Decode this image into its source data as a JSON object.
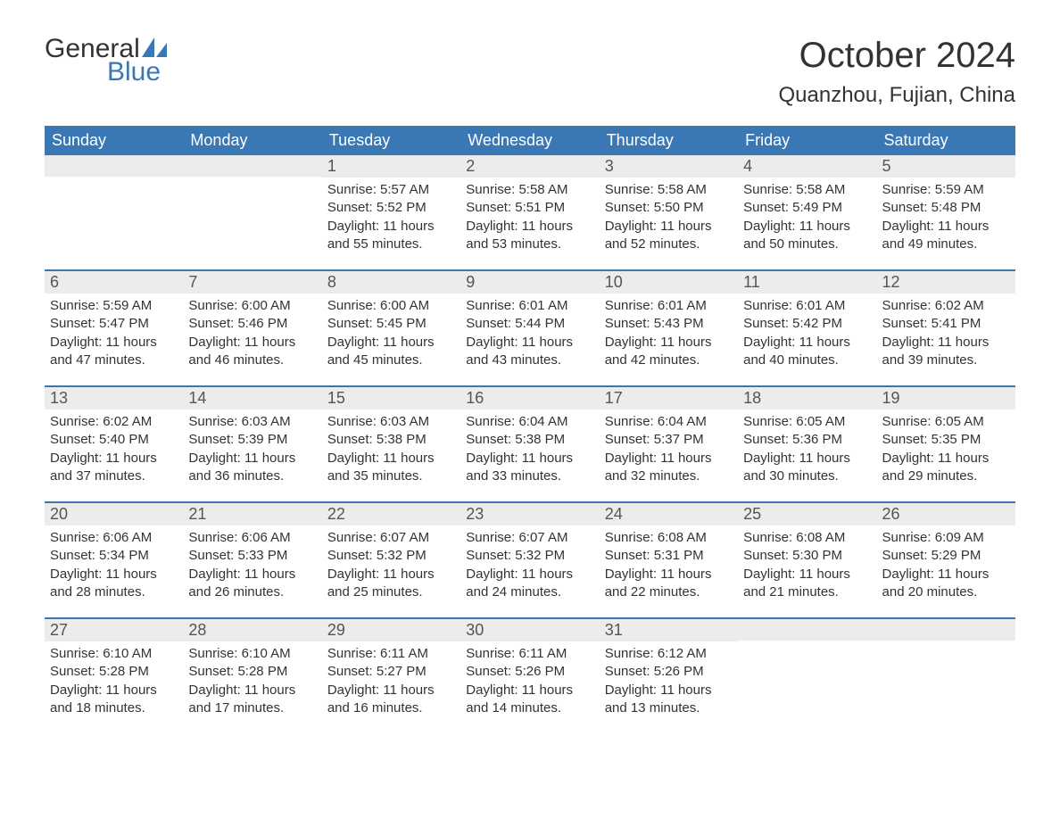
{
  "brand": {
    "general": "General",
    "blue": "Blue",
    "icon_color": "#3a78b5",
    "text_color": "#333333"
  },
  "header": {
    "month_title": "October 2024",
    "location": "Quanzhou, Fujian, China",
    "title_fontsize": 40,
    "location_fontsize": 24
  },
  "style": {
    "header_bg": "#3a78b5",
    "header_text": "#ffffff",
    "daynum_bg": "#ececec",
    "body_text_color": "#333333",
    "border_color": "#3a78b5",
    "page_bg": "#ffffff",
    "weekday_fontsize": 18,
    "daynum_fontsize": 18,
    "body_fontsize": 15
  },
  "weekdays": [
    "Sunday",
    "Monday",
    "Tuesday",
    "Wednesday",
    "Thursday",
    "Friday",
    "Saturday"
  ],
  "weeks": [
    [
      {
        "day": "",
        "sunrise": "",
        "sunset": "",
        "daylight": ""
      },
      {
        "day": "",
        "sunrise": "",
        "sunset": "",
        "daylight": ""
      },
      {
        "day": "1",
        "sunrise": "Sunrise: 5:57 AM",
        "sunset": "Sunset: 5:52 PM",
        "daylight": "Daylight: 11 hours and 55 minutes."
      },
      {
        "day": "2",
        "sunrise": "Sunrise: 5:58 AM",
        "sunset": "Sunset: 5:51 PM",
        "daylight": "Daylight: 11 hours and 53 minutes."
      },
      {
        "day": "3",
        "sunrise": "Sunrise: 5:58 AM",
        "sunset": "Sunset: 5:50 PM",
        "daylight": "Daylight: 11 hours and 52 minutes."
      },
      {
        "day": "4",
        "sunrise": "Sunrise: 5:58 AM",
        "sunset": "Sunset: 5:49 PM",
        "daylight": "Daylight: 11 hours and 50 minutes."
      },
      {
        "day": "5",
        "sunrise": "Sunrise: 5:59 AM",
        "sunset": "Sunset: 5:48 PM",
        "daylight": "Daylight: 11 hours and 49 minutes."
      }
    ],
    [
      {
        "day": "6",
        "sunrise": "Sunrise: 5:59 AM",
        "sunset": "Sunset: 5:47 PM",
        "daylight": "Daylight: 11 hours and 47 minutes."
      },
      {
        "day": "7",
        "sunrise": "Sunrise: 6:00 AM",
        "sunset": "Sunset: 5:46 PM",
        "daylight": "Daylight: 11 hours and 46 minutes."
      },
      {
        "day": "8",
        "sunrise": "Sunrise: 6:00 AM",
        "sunset": "Sunset: 5:45 PM",
        "daylight": "Daylight: 11 hours and 45 minutes."
      },
      {
        "day": "9",
        "sunrise": "Sunrise: 6:01 AM",
        "sunset": "Sunset: 5:44 PM",
        "daylight": "Daylight: 11 hours and 43 minutes."
      },
      {
        "day": "10",
        "sunrise": "Sunrise: 6:01 AM",
        "sunset": "Sunset: 5:43 PM",
        "daylight": "Daylight: 11 hours and 42 minutes."
      },
      {
        "day": "11",
        "sunrise": "Sunrise: 6:01 AM",
        "sunset": "Sunset: 5:42 PM",
        "daylight": "Daylight: 11 hours and 40 minutes."
      },
      {
        "day": "12",
        "sunrise": "Sunrise: 6:02 AM",
        "sunset": "Sunset: 5:41 PM",
        "daylight": "Daylight: 11 hours and 39 minutes."
      }
    ],
    [
      {
        "day": "13",
        "sunrise": "Sunrise: 6:02 AM",
        "sunset": "Sunset: 5:40 PM",
        "daylight": "Daylight: 11 hours and 37 minutes."
      },
      {
        "day": "14",
        "sunrise": "Sunrise: 6:03 AM",
        "sunset": "Sunset: 5:39 PM",
        "daylight": "Daylight: 11 hours and 36 minutes."
      },
      {
        "day": "15",
        "sunrise": "Sunrise: 6:03 AM",
        "sunset": "Sunset: 5:38 PM",
        "daylight": "Daylight: 11 hours and 35 minutes."
      },
      {
        "day": "16",
        "sunrise": "Sunrise: 6:04 AM",
        "sunset": "Sunset: 5:38 PM",
        "daylight": "Daylight: 11 hours and 33 minutes."
      },
      {
        "day": "17",
        "sunrise": "Sunrise: 6:04 AM",
        "sunset": "Sunset: 5:37 PM",
        "daylight": "Daylight: 11 hours and 32 minutes."
      },
      {
        "day": "18",
        "sunrise": "Sunrise: 6:05 AM",
        "sunset": "Sunset: 5:36 PM",
        "daylight": "Daylight: 11 hours and 30 minutes."
      },
      {
        "day": "19",
        "sunrise": "Sunrise: 6:05 AM",
        "sunset": "Sunset: 5:35 PM",
        "daylight": "Daylight: 11 hours and 29 minutes."
      }
    ],
    [
      {
        "day": "20",
        "sunrise": "Sunrise: 6:06 AM",
        "sunset": "Sunset: 5:34 PM",
        "daylight": "Daylight: 11 hours and 28 minutes."
      },
      {
        "day": "21",
        "sunrise": "Sunrise: 6:06 AM",
        "sunset": "Sunset: 5:33 PM",
        "daylight": "Daylight: 11 hours and 26 minutes."
      },
      {
        "day": "22",
        "sunrise": "Sunrise: 6:07 AM",
        "sunset": "Sunset: 5:32 PM",
        "daylight": "Daylight: 11 hours and 25 minutes."
      },
      {
        "day": "23",
        "sunrise": "Sunrise: 6:07 AM",
        "sunset": "Sunset: 5:32 PM",
        "daylight": "Daylight: 11 hours and 24 minutes."
      },
      {
        "day": "24",
        "sunrise": "Sunrise: 6:08 AM",
        "sunset": "Sunset: 5:31 PM",
        "daylight": "Daylight: 11 hours and 22 minutes."
      },
      {
        "day": "25",
        "sunrise": "Sunrise: 6:08 AM",
        "sunset": "Sunset: 5:30 PM",
        "daylight": "Daylight: 11 hours and 21 minutes."
      },
      {
        "day": "26",
        "sunrise": "Sunrise: 6:09 AM",
        "sunset": "Sunset: 5:29 PM",
        "daylight": "Daylight: 11 hours and 20 minutes."
      }
    ],
    [
      {
        "day": "27",
        "sunrise": "Sunrise: 6:10 AM",
        "sunset": "Sunset: 5:28 PM",
        "daylight": "Daylight: 11 hours and 18 minutes."
      },
      {
        "day": "28",
        "sunrise": "Sunrise: 6:10 AM",
        "sunset": "Sunset: 5:28 PM",
        "daylight": "Daylight: 11 hours and 17 minutes."
      },
      {
        "day": "29",
        "sunrise": "Sunrise: 6:11 AM",
        "sunset": "Sunset: 5:27 PM",
        "daylight": "Daylight: 11 hours and 16 minutes."
      },
      {
        "day": "30",
        "sunrise": "Sunrise: 6:11 AM",
        "sunset": "Sunset: 5:26 PM",
        "daylight": "Daylight: 11 hours and 14 minutes."
      },
      {
        "day": "31",
        "sunrise": "Sunrise: 6:12 AM",
        "sunset": "Sunset: 5:26 PM",
        "daylight": "Daylight: 11 hours and 13 minutes."
      },
      {
        "day": "",
        "sunrise": "",
        "sunset": "",
        "daylight": ""
      },
      {
        "day": "",
        "sunrise": "",
        "sunset": "",
        "daylight": ""
      }
    ]
  ]
}
